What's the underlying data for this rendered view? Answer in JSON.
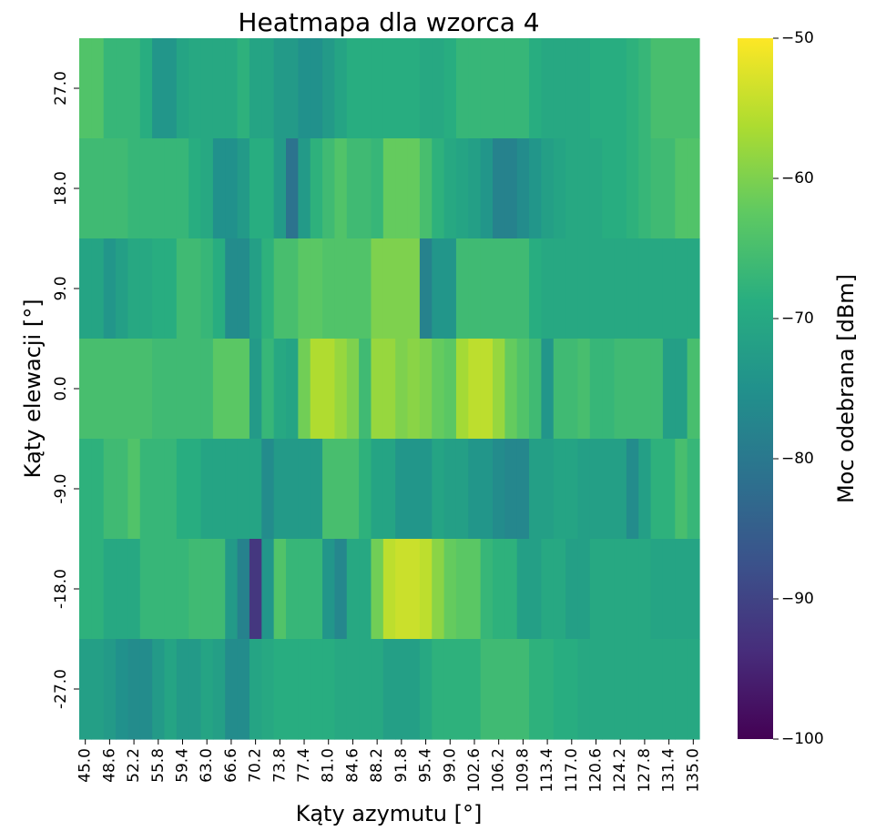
{
  "chart_data": {
    "type": "heatmap",
    "title": "Heatmapa dla wzorca 4",
    "xlabel": "Kąty azymutu [°]",
    "ylabel": "Kąty elewacji [°]",
    "colorbar_label": "Moc odebrana [dBm]",
    "colormap": "viridis",
    "value_range": [
      -100,
      -50
    ],
    "colorbar_ticks": [
      "−50",
      "−60",
      "−70",
      "−80",
      "−90",
      "−100"
    ],
    "colorbar_tick_values": [
      -50,
      -60,
      -70,
      -80,
      -90,
      -100
    ],
    "x_values": [
      45.0,
      46.8,
      48.6,
      50.4,
      52.2,
      54.0,
      55.8,
      57.6,
      59.4,
      61.2,
      63.0,
      64.8,
      66.6,
      68.4,
      70.2,
      72.0,
      73.8,
      75.6,
      77.4,
      79.2,
      81.0,
      82.8,
      84.6,
      86.4,
      88.2,
      90.0,
      91.8,
      93.6,
      95.4,
      97.2,
      99.0,
      100.8,
      102.6,
      104.4,
      106.2,
      108.0,
      109.8,
      111.6,
      113.4,
      115.2,
      117.0,
      118.8,
      120.6,
      122.4,
      124.2,
      126.0,
      127.8,
      129.6,
      131.4,
      133.2,
      135.0
    ],
    "x_tick_labels": [
      "45.0",
      "48.6",
      "52.2",
      "55.8",
      "59.4",
      "63.0",
      "66.6",
      "70.2",
      "73.8",
      "77.4",
      "81.0",
      "84.6",
      "88.2",
      "91.8",
      "95.4",
      "99.0",
      "102.6",
      "106.2",
      "109.8",
      "113.4",
      "117.0",
      "120.6",
      "124.2",
      "127.8",
      "131.4",
      "135.0"
    ],
    "y_values": [
      27.0,
      18.0,
      9.0,
      0.0,
      -9.0,
      -18.0,
      -27.0
    ],
    "y_tick_labels": [
      "27.0",
      "18.0",
      "9.0",
      "0.0",
      "-9.0",
      "-18.0",
      "-27.0"
    ],
    "values": [
      [
        -64,
        -64,
        -67,
        -67,
        -67,
        -69,
        -74,
        -74,
        -71,
        -70,
        -70,
        -70,
        -70,
        -68,
        -71,
        -71,
        -73,
        -73,
        -75,
        -75,
        -73,
        -71,
        -69,
        -69,
        -69,
        -69,
        -69,
        -69,
        -70,
        -70,
        -69,
        -67,
        -67,
        -67,
        -67,
        -67,
        -67,
        -69,
        -70,
        -70,
        -70,
        -70,
        -69,
        -69,
        -69,
        -68,
        -67,
        -65,
        -65,
        -65,
        -65
      ],
      [
        -66,
        -66,
        -66,
        -66,
        -67,
        -67,
        -67,
        -67,
        -67,
        -69,
        -70,
        -75,
        -75,
        -73,
        -69,
        -69,
        -73,
        -81,
        -73,
        -68,
        -66,
        -64,
        -66,
        -66,
        -67,
        -62,
        -62,
        -62,
        -65,
        -68,
        -70,
        -71,
        -72,
        -74,
        -78,
        -78,
        -76,
        -74,
        -72,
        -71,
        -70,
        -70,
        -70,
        -69,
        -69,
        -68,
        -67,
        -66,
        -66,
        -64,
        -64
      ],
      [
        -71,
        -71,
        -74,
        -72,
        -70,
        -70,
        -69,
        -69,
        -66,
        -66,
        -67,
        -69,
        -76,
        -76,
        -72,
        -68,
        -65,
        -65,
        -63,
        -63,
        -64,
        -64,
        -64,
        -64,
        -60,
        -60,
        -60,
        -60,
        -78,
        -74,
        -74,
        -66,
        -66,
        -66,
        -66,
        -66,
        -66,
        -69,
        -70,
        -70,
        -70,
        -70,
        -70,
        -70,
        -70,
        -70,
        -70,
        -70,
        -70,
        -70,
        -70
      ],
      [
        -65,
        -65,
        -65,
        -65,
        -65,
        -65,
        -66,
        -66,
        -66,
        -66,
        -66,
        -63,
        -63,
        -63,
        -73,
        -67,
        -70,
        -71,
        -61,
        -56,
        -56,
        -58,
        -60,
        -66,
        -58,
        -58,
        -60,
        -59,
        -60,
        -62,
        -63,
        -57,
        -55,
        -55,
        -58,
        -62,
        -64,
        -66,
        -74,
        -66,
        -66,
        -65,
        -67,
        -67,
        -66,
        -66,
        -66,
        -66,
        -72,
        -72,
        -65
      ],
      [
        -68,
        -68,
        -66,
        -66,
        -64,
        -67,
        -67,
        -67,
        -69,
        -69,
        -71,
        -71,
        -71,
        -71,
        -71,
        -76,
        -73,
        -73,
        -73,
        -73,
        -65,
        -65,
        -65,
        -68,
        -71,
        -71,
        -74,
        -74,
        -74,
        -71,
        -72,
        -72,
        -74,
        -74,
        -76,
        -77,
        -77,
        -72,
        -72,
        -71,
        -71,
        -72,
        -72,
        -72,
        -72,
        -76,
        -72,
        -68,
        -68,
        -65,
        -67
      ],
      [
        -68,
        -68,
        -70,
        -70,
        -70,
        -67,
        -67,
        -67,
        -67,
        -66,
        -66,
        -66,
        -73,
        -78,
        -92,
        -74,
        -64,
        -67,
        -67,
        -67,
        -74,
        -77,
        -70,
        -70,
        -61,
        -55,
        -54,
        -54,
        -55,
        -59,
        -62,
        -63,
        -63,
        -67,
        -68,
        -68,
        -72,
        -72,
        -70,
        -70,
        -72,
        -72,
        -70,
        -70,
        -70,
        -70,
        -70,
        -71,
        -71,
        -71,
        -71
      ],
      [
        -72,
        -72,
        -73,
        -75,
        -76,
        -76,
        -73,
        -71,
        -73,
        -73,
        -71,
        -72,
        -76,
        -76,
        -71,
        -70,
        -69,
        -69,
        -69,
        -69,
        -69,
        -70,
        -70,
        -70,
        -70,
        -72,
        -72,
        -72,
        -70,
        -68,
        -68,
        -68,
        -68,
        -66,
        -66,
        -66,
        -66,
        -68,
        -68,
        -69,
        -69,
        -70,
        -70,
        -70,
        -70,
        -70,
        -70,
        -70,
        -70,
        -70,
        -70
      ]
    ]
  }
}
